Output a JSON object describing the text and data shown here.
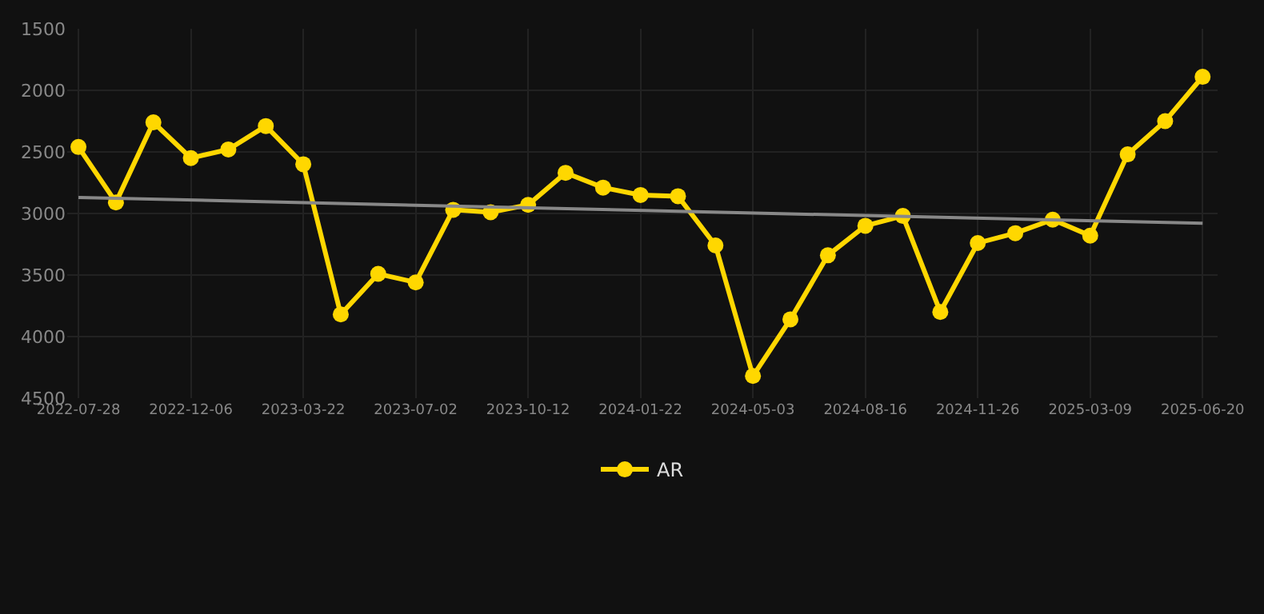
{
  "chart_data": {
    "type": "line",
    "categories": [
      "2022-07-28",
      null,
      null,
      "2022-12-06",
      null,
      null,
      "2023-03-22",
      null,
      null,
      "2023-07-02",
      null,
      null,
      "2023-10-12",
      null,
      null,
      "2024-01-22",
      null,
      null,
      "2024-05-03",
      null,
      null,
      "2024-08-16",
      null,
      null,
      "2024-11-26",
      null,
      null,
      "2025-03-09",
      null,
      null,
      "2025-06-20"
    ],
    "series": [
      {
        "name": "AR",
        "color": "#ffd700",
        "marker": "circle",
        "values": [
          2460,
          2910,
          2260,
          2550,
          2480,
          2290,
          2600,
          3820,
          3490,
          3560,
          2970,
          2990,
          2930,
          2670,
          2790,
          2850,
          2860,
          3260,
          4320,
          3860,
          3340,
          3100,
          3020,
          3800,
          3240,
          3160,
          3050,
          3180,
          2520,
          2250,
          1890
        ]
      },
      {
        "type": "line",
        "color": "#888888",
        "marker": "none",
        "values": [
          2870,
          null,
          null,
          null,
          null,
          null,
          null,
          null,
          null,
          null,
          null,
          null,
          null,
          null,
          null,
          null,
          null,
          null,
          null,
          null,
          null,
          null,
          null,
          null,
          null,
          null,
          null,
          null,
          null,
          null,
          3080
        ]
      }
    ],
    "ylim": [
      4500,
      1500
    ],
    "yticks": [
      1500,
      2000,
      2500,
      3000,
      3500,
      4000,
      4500
    ],
    "grid": true,
    "legend": "bottom"
  }
}
